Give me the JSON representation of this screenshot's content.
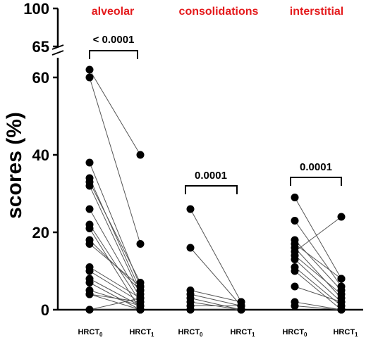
{
  "chart_data": {
    "type": "scatter",
    "title": "",
    "ylabel": "scores (%)",
    "ylim": [
      0,
      65
    ],
    "y_ticks": [
      "0",
      "20",
      "40",
      "60"
    ],
    "y_break_ticks": [
      "65",
      "100"
    ],
    "groups": [
      {
        "name": "alveolar",
        "p_value": "< 0.0001",
        "pairs": [
          [
            62,
            40
          ],
          [
            60,
            17
          ],
          [
            38,
            6
          ],
          [
            34,
            5
          ],
          [
            33,
            7
          ],
          [
            32,
            4
          ],
          [
            26,
            3
          ],
          [
            22,
            2
          ],
          [
            21,
            0
          ],
          [
            18,
            5
          ],
          [
            17,
            6
          ],
          [
            11,
            3
          ],
          [
            10,
            2
          ],
          [
            8,
            1
          ],
          [
            7,
            0
          ],
          [
            5,
            1
          ],
          [
            4,
            2
          ],
          [
            4,
            0
          ],
          [
            0,
            3
          ],
          [
            0,
            0
          ]
        ]
      },
      {
        "name": "consolidations",
        "p_value": "0.0001",
        "pairs": [
          [
            26,
            2
          ],
          [
            16,
            1
          ],
          [
            5,
            2
          ],
          [
            4,
            1
          ],
          [
            3,
            0
          ],
          [
            2,
            0
          ],
          [
            1,
            1
          ],
          [
            0,
            0
          ],
          [
            0,
            0
          ]
        ]
      },
      {
        "name": "interstitial",
        "p_value": "0.0001",
        "pairs": [
          [
            29,
            8
          ],
          [
            23,
            6
          ],
          [
            18,
            5
          ],
          [
            17,
            8
          ],
          [
            16,
            3
          ],
          [
            15,
            24
          ],
          [
            14,
            4
          ],
          [
            13,
            2
          ],
          [
            11,
            1
          ],
          [
            10,
            0
          ],
          [
            6,
            2
          ],
          [
            2,
            0
          ],
          [
            1,
            0
          ]
        ]
      }
    ],
    "x_labels": [
      {
        "base": "HRCT",
        "sub": "0"
      },
      {
        "base": "HRCT",
        "sub": "1"
      },
      {
        "base": "HRCT",
        "sub": "0"
      },
      {
        "base": "HRCT",
        "sub": "1"
      },
      {
        "base": "HRCT",
        "sub": "0"
      },
      {
        "base": "HRCT",
        "sub": "1"
      }
    ],
    "colors": {
      "points": "#000000",
      "group_titles": "#e41a1c"
    }
  }
}
